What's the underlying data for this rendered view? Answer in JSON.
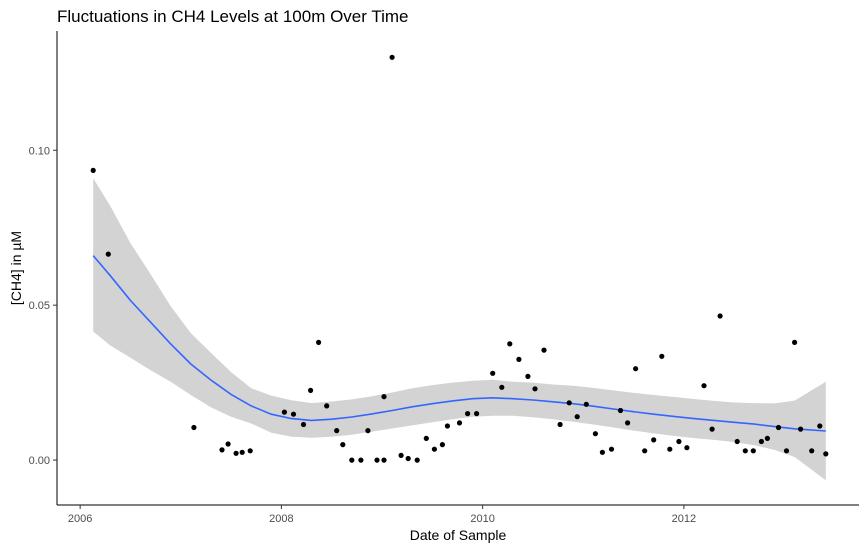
{
  "chart_data": {
    "type": "scatter",
    "title": "Fluctuations in CH4 Levels at 100m Over Time",
    "xlabel": "Date of Sample",
    "ylabel": "[CH4] in µM",
    "x_ticks": [
      "2006",
      "2008",
      "2010",
      "2012"
    ],
    "y_ticks": [
      "0.00",
      "0.05",
      "0.10"
    ],
    "xlim": [
      2005.77,
      2013.74
    ],
    "ylim": [
      -0.0145,
      0.1385
    ],
    "grid": false,
    "legend": "none",
    "colors": {
      "points": "#000000",
      "trend": "#3366ff",
      "ribbon": "#d3d3d3"
    },
    "points": [
      [
        2006.13,
        0.0935
      ],
      [
        2006.28,
        0.0665
      ],
      [
        2007.13,
        0.0105
      ],
      [
        2007.41,
        0.0033
      ],
      [
        2007.47,
        0.0052
      ],
      [
        2007.55,
        0.0022
      ],
      [
        2007.61,
        0.0025
      ],
      [
        2007.69,
        0.003
      ],
      [
        2008.03,
        0.0155
      ],
      [
        2008.12,
        0.0148
      ],
      [
        2008.22,
        0.0115
      ],
      [
        2008.29,
        0.0225
      ],
      [
        2008.37,
        0.038
      ],
      [
        2008.45,
        0.0175
      ],
      [
        2008.55,
        0.0095
      ],
      [
        2008.61,
        0.005
      ],
      [
        2008.7,
        0.0
      ],
      [
        2008.79,
        0.0
      ],
      [
        2008.86,
        0.0095
      ],
      [
        2008.95,
        0.0
      ],
      [
        2009.02,
        0.0205
      ],
      [
        2009.02,
        0.0
      ],
      [
        2009.1,
        0.13
      ],
      [
        2009.19,
        0.0015
      ],
      [
        2009.26,
        0.0005
      ],
      [
        2009.35,
        0.0
      ],
      [
        2009.44,
        0.007
      ],
      [
        2009.52,
        0.0035
      ],
      [
        2009.6,
        0.005
      ],
      [
        2009.65,
        0.011
      ],
      [
        2009.77,
        0.012
      ],
      [
        2009.85,
        0.015
      ],
      [
        2009.94,
        0.015
      ],
      [
        2010.1,
        0.028
      ],
      [
        2010.19,
        0.0235
      ],
      [
        2010.27,
        0.0375
      ],
      [
        2010.36,
        0.0325
      ],
      [
        2010.45,
        0.027
      ],
      [
        2010.52,
        0.023
      ],
      [
        2010.61,
        0.0355
      ],
      [
        2010.77,
        0.0115
      ],
      [
        2010.86,
        0.0185
      ],
      [
        2010.94,
        0.014
      ],
      [
        2011.03,
        0.018
      ],
      [
        2011.12,
        0.0085
      ],
      [
        2011.19,
        0.0025
      ],
      [
        2011.28,
        0.0035
      ],
      [
        2011.37,
        0.016
      ],
      [
        2011.44,
        0.012
      ],
      [
        2011.52,
        0.0295
      ],
      [
        2011.61,
        0.003
      ],
      [
        2011.7,
        0.0065
      ],
      [
        2011.78,
        0.0335
      ],
      [
        2011.86,
        0.0035
      ],
      [
        2011.95,
        0.006
      ],
      [
        2012.03,
        0.004
      ],
      [
        2012.2,
        0.024
      ],
      [
        2012.28,
        0.01
      ],
      [
        2012.36,
        0.0465
      ],
      [
        2012.53,
        0.006
      ],
      [
        2012.61,
        0.003
      ],
      [
        2012.69,
        0.003
      ],
      [
        2012.77,
        0.006
      ],
      [
        2012.83,
        0.007
      ],
      [
        2012.94,
        0.0105
      ],
      [
        2013.02,
        0.003
      ],
      [
        2013.1,
        0.038
      ],
      [
        2013.16,
        0.01
      ],
      [
        2013.27,
        0.003
      ],
      [
        2013.35,
        0.011
      ],
      [
        2013.41,
        0.002
      ]
    ],
    "smooth": {
      "x": [
        2006.13,
        2006.3,
        2006.5,
        2006.7,
        2006.9,
        2007.1,
        2007.3,
        2007.5,
        2007.7,
        2007.9,
        2008.1,
        2008.3,
        2008.5,
        2008.7,
        2008.9,
        2009.1,
        2009.3,
        2009.5,
        2009.7,
        2009.9,
        2010.1,
        2010.3,
        2010.5,
        2010.7,
        2010.9,
        2011.1,
        2011.3,
        2011.5,
        2011.7,
        2011.9,
        2012.1,
        2012.3,
        2012.5,
        2012.7,
        2012.9,
        2013.1,
        2013.41
      ],
      "y": [
        0.066,
        0.0595,
        0.0515,
        0.0445,
        0.0375,
        0.031,
        0.0258,
        0.0212,
        0.0175,
        0.0148,
        0.0134,
        0.0128,
        0.0132,
        0.0139,
        0.0149,
        0.016,
        0.0172,
        0.0182,
        0.0191,
        0.0198,
        0.0201,
        0.0198,
        0.0194,
        0.0188,
        0.0182,
        0.0174,
        0.0165,
        0.0156,
        0.0148,
        0.0141,
        0.0134,
        0.0128,
        0.0122,
        0.0116,
        0.0108,
        0.0101,
        0.0094
      ],
      "lower": [
        0.0415,
        0.037,
        0.033,
        0.029,
        0.0253,
        0.021,
        0.017,
        0.014,
        0.0118,
        0.0088,
        0.0075,
        0.0072,
        0.0075,
        0.0082,
        0.0092,
        0.0102,
        0.0112,
        0.0122,
        0.0132,
        0.014,
        0.0143,
        0.0143,
        0.0138,
        0.0132,
        0.0124,
        0.0115,
        0.0105,
        0.0095,
        0.0086,
        0.0078,
        0.0071,
        0.0065,
        0.0058,
        0.0048,
        0.0033,
        0.001,
        -0.0065
      ],
      "upper": [
        0.091,
        0.082,
        0.07,
        0.06,
        0.0497,
        0.041,
        0.0346,
        0.0284,
        0.0232,
        0.0208,
        0.0193,
        0.0184,
        0.0189,
        0.0196,
        0.0206,
        0.0218,
        0.0232,
        0.0242,
        0.025,
        0.0256,
        0.0259,
        0.0253,
        0.025,
        0.0244,
        0.024,
        0.0233,
        0.0225,
        0.0217,
        0.021,
        0.0204,
        0.0197,
        0.0191,
        0.0186,
        0.0184,
        0.0183,
        0.0192,
        0.0253
      ]
    }
  }
}
